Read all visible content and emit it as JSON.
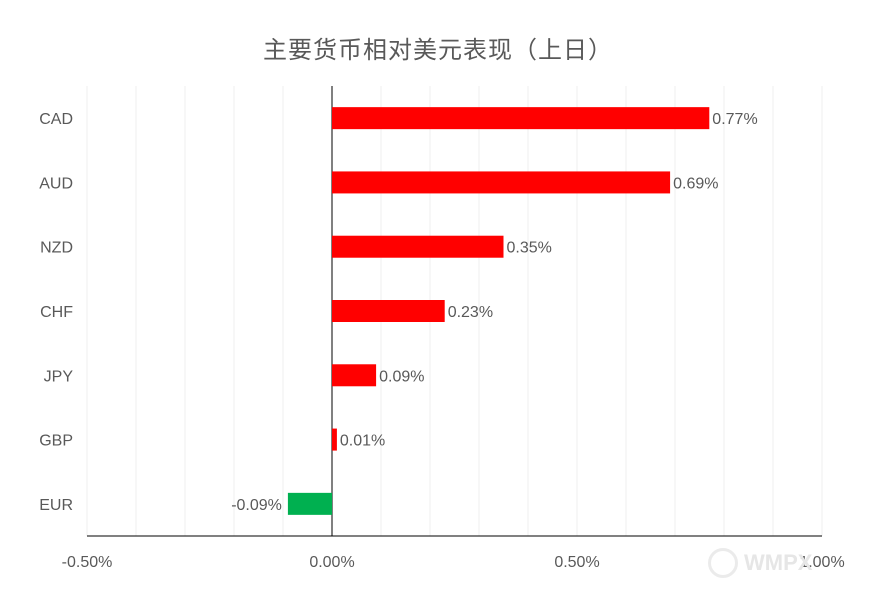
{
  "chart_data": {
    "type": "bar",
    "orientation": "horizontal",
    "title": "主要货币相对美元表现（上日）",
    "categories": [
      "CAD",
      "AUD",
      "NZD",
      "CHF",
      "JPY",
      "GBP",
      "EUR"
    ],
    "values": [
      0.77,
      0.69,
      0.35,
      0.23,
      0.09,
      0.01,
      -0.09
    ],
    "data_labels": [
      "0.77%",
      "0.69%",
      "0.35%",
      "0.23%",
      "0.09%",
      "0.01%",
      "-0.09%"
    ],
    "xlim": [
      -0.5,
      1.0
    ],
    "xticks": [
      -0.5,
      0.0,
      0.5,
      1.0
    ],
    "xtick_labels": [
      "-0.50%",
      "0.00%",
      "0.50%",
      "1.00%"
    ],
    "minor_grid_step": 0.1,
    "grid": true,
    "legend": "none",
    "colors": {
      "positive": "#ff0000",
      "negative": "#00b050",
      "text": "#595959",
      "axis": "#000000",
      "grid": "#efefef"
    }
  },
  "watermark": {
    "text": "WMPX"
  }
}
